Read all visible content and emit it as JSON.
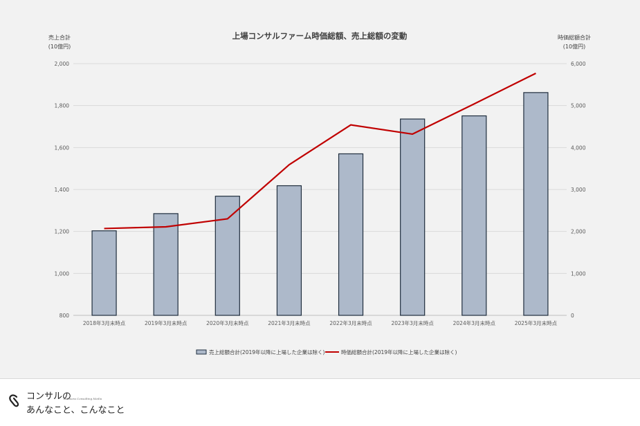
{
  "chart_data": {
    "type": "bar+line",
    "title": "上場コンサルファーム時価総額、売上総額の変動",
    "categories": [
      "2018年3月末時点",
      "2019年3月末時点",
      "2020年3月末時点",
      "2021年3月末時点",
      "2022年3月末時点",
      "2023年3月末時点",
      "2024年3月末時点",
      "2025年3月末時点"
    ],
    "y_left": {
      "label_line1": "売上合計",
      "label_line2": "(10億円)",
      "range": [
        800,
        2000
      ],
      "ticks": [
        800,
        1000,
        1200,
        1400,
        1600,
        1800,
        2000
      ],
      "tick_labels": [
        "800",
        "1,000",
        "1,200",
        "1,400",
        "1,600",
        "1,800",
        "2,000"
      ]
    },
    "y_right": {
      "label_line1": "時価総額合計",
      "label_line2": "(10億円)",
      "range": [
        0,
        6000
      ],
      "ticks": [
        0,
        1000,
        2000,
        3000,
        4000,
        5000,
        6000
      ],
      "tick_labels": [
        "0",
        "1,000",
        "2,000",
        "3,000",
        "4,000",
        "5,000",
        "6,000"
      ]
    },
    "grid": true,
    "series": [
      {
        "name": "売上総額合計(2019年以降に上場した企業は除く)",
        "type": "bar",
        "axis": "left",
        "color": "#adb9ca",
        "values": [
          1203,
          1285,
          1368,
          1418,
          1570,
          1736,
          1751,
          1862
        ]
      },
      {
        "name": "時価総額合計(2019年以降に上場した企業は除く)",
        "type": "line",
        "axis": "right",
        "color": "#c00000",
        "values": [
          2070,
          2110,
          2300,
          3590,
          4540,
          4320,
          5040,
          5770
        ]
      }
    ],
    "legend_position": "bottom"
  },
  "brand": {
    "line1": "コンサルの",
    "subtitle": "Business Consulting Media",
    "line2": "あんなこと、こんなこと"
  }
}
